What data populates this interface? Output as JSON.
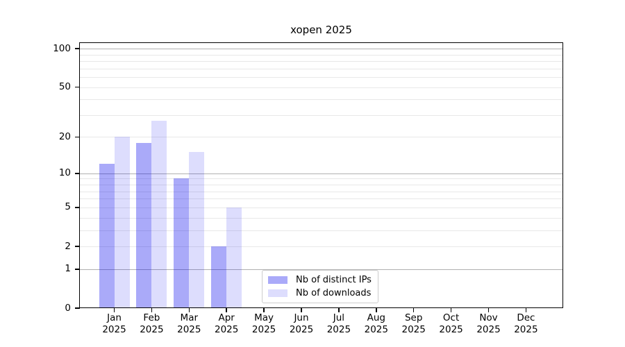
{
  "chart_data": {
    "type": "bar",
    "title": "xopen 2025",
    "categories": [
      "Jan",
      "Feb",
      "Mar",
      "Apr",
      "May",
      "Jun",
      "Jul",
      "Aug",
      "Sep",
      "Oct",
      "Nov",
      "Dec"
    ],
    "x_tick_year_line": "2025",
    "series": [
      {
        "name": "Nb of distinct IPs",
        "key": "distinct-ips",
        "color": "rgba(0,0,238,0.335)",
        "values": [
          12,
          18,
          9,
          2,
          0,
          0,
          0,
          0,
          0,
          0,
          0,
          0
        ]
      },
      {
        "name": "Nb of downloads",
        "key": "downloads",
        "color": "rgba(0,0,238,0.133)",
        "values": [
          20,
          27,
          15,
          5,
          0,
          0,
          0,
          0,
          0,
          0,
          0,
          0
        ]
      }
    ],
    "y_axis": {
      "scale": "log1p",
      "tick_labels": [
        "0",
        "1",
        "2",
        "5",
        "10",
        "20",
        "50",
        "100"
      ],
      "major_gridlines": [
        1,
        10,
        100
      ],
      "minor_gridlines": [
        2,
        3,
        4,
        5,
        6,
        7,
        8,
        9,
        20,
        30,
        40,
        50,
        60,
        70,
        80,
        90
      ],
      "top_value": 113
    },
    "legend_position": "inside-lower-center",
    "grid": true,
    "colors": {
      "grid_major": "#b0b0b0",
      "grid_minor": "#e8e8e8",
      "spine": "#000000",
      "text": "#000000"
    }
  }
}
